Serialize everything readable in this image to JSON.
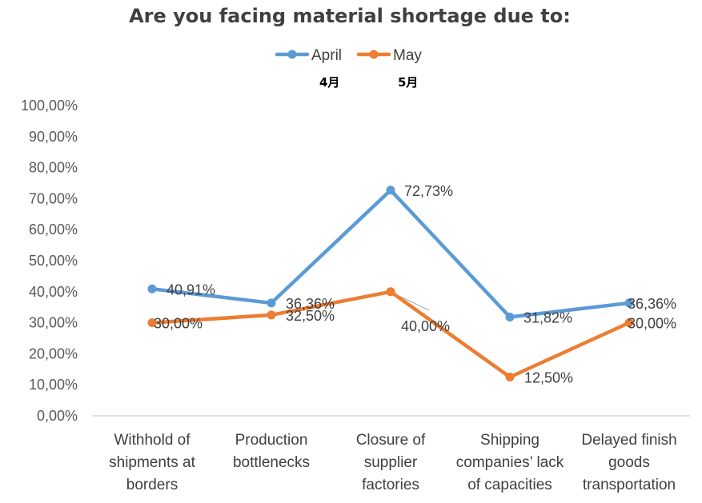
{
  "chart_data": {
    "type": "line",
    "title": "Are you facing material shortage due to:",
    "categories": [
      [
        "Withhold of",
        "shipments at",
        "borders"
      ],
      [
        "Production",
        "bottlenecks"
      ],
      [
        "Closure of",
        "supplier",
        "factories"
      ],
      [
        "Shipping",
        "companies’ lack",
        "of capacities"
      ],
      [
        "Delayed finish",
        "goods",
        "transportation"
      ]
    ],
    "series": [
      {
        "name": "April",
        "sub": "4月",
        "color": "#5B9BD5",
        "values": [
          40.91,
          36.36,
          72.73,
          31.82,
          36.36
        ],
        "labels": [
          "40,91%",
          "36,36%",
          "72,73%",
          "31,82%",
          "36,36%"
        ]
      },
      {
        "name": "May",
        "sub": "5月",
        "color": "#ED7D31",
        "values": [
          30.0,
          32.5,
          40.0,
          12.5,
          30.0
        ],
        "labels": [
          "30,00%",
          "32,50%",
          "40,00%",
          "12,50%",
          "30,00%"
        ]
      }
    ],
    "yticks": [
      "0,00%",
      "10,00%",
      "20,00%",
      "30,00%",
      "40,00%",
      "50,00%",
      "60,00%",
      "70,00%",
      "80,00%",
      "90,00%",
      "100,00%"
    ],
    "ylim": [
      0,
      100
    ],
    "grid": false,
    "legend": "top-center"
  }
}
